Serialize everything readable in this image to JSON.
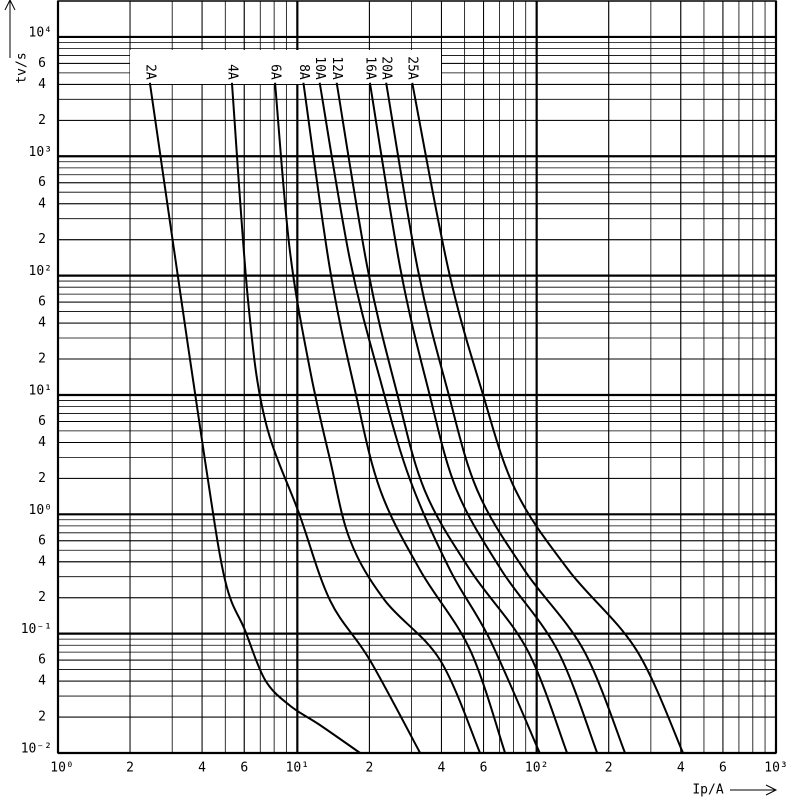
{
  "chart_data": {
    "type": "line",
    "log_x": true,
    "log_y": true,
    "grid": true,
    "minor_grid": true,
    "color": "#000000",
    "xlabel": "Ip/A",
    "ylabel": "tv/s",
    "xlim": [
      1,
      1000
    ],
    "ylim": [
      0.01,
      20000
    ],
    "xticks": [
      {
        "value": 1,
        "label": "10⁰"
      },
      2,
      4,
      6,
      {
        "value": 10,
        "label": "10¹"
      },
      {
        "value": 20,
        "label": "2"
      },
      {
        "value": 40,
        "label": "4"
      },
      {
        "value": 60,
        "label": "6"
      },
      {
        "value": 100,
        "label": "10²"
      },
      {
        "value": 200,
        "label": "2"
      },
      {
        "value": 400,
        "label": "4"
      },
      {
        "value": 600,
        "label": "6"
      },
      {
        "value": 1000,
        "label": "10³"
      }
    ],
    "yticks": [
      {
        "value": 0.01,
        "label": "10⁻²"
      },
      {
        "value": 0.02,
        "label": "2"
      },
      {
        "value": 0.04,
        "label": "4"
      },
      {
        "value": 0.06,
        "label": "6"
      },
      {
        "value": 0.1,
        "label": "10⁻¹"
      },
      {
        "value": 0.2,
        "label": "2"
      },
      {
        "value": 0.4,
        "label": "4"
      },
      {
        "value": 0.6,
        "label": "6"
      },
      {
        "value": 1,
        "label": "10⁰"
      },
      2,
      4,
      6,
      {
        "value": 10,
        "label": "10¹"
      },
      {
        "value": 20,
        "label": "2"
      },
      {
        "value": 40,
        "label": "4"
      },
      {
        "value": 60,
        "label": "6"
      },
      {
        "value": 100,
        "label": "10²"
      },
      {
        "value": 200,
        "label": "2"
      },
      {
        "value": 400,
        "label": "4"
      },
      {
        "value": 600,
        "label": "6"
      },
      {
        "value": 1000,
        "label": "10³"
      },
      {
        "value": 2000,
        "label": "2"
      },
      {
        "value": 4000,
        "label": "4"
      },
      {
        "value": 6000,
        "label": "6"
      },
      {
        "value": 10000,
        "label": "10⁴"
      }
    ],
    "series": [
      {
        "name": "2A",
        "x": [
          2.42,
          2.99,
          4.11,
          4.99,
          6.04,
          7.33,
          9.3,
          12.4,
          18.3
        ],
        "values": [
          4130,
          220,
          2.86,
          0.28,
          0.107,
          0.041,
          0.025,
          0.0172,
          0.01
        ]
      },
      {
        "name": "4A",
        "x": [
          5.33,
          6.22,
          7.33,
          10.2,
          13.7,
          20.1,
          32.6
        ],
        "values": [
          4130,
          62.7,
          6.2,
          1,
          0.19,
          0.06,
          0.01
        ]
      },
      {
        "name": "6A",
        "x": [
          8.07,
          9.3,
          11.3,
          13.7,
          16.6,
          23.2,
          39.5,
          58
        ],
        "values": [
          4130,
          164,
          16.2,
          2.86,
          0.61,
          0.19,
          0.06,
          0.01
        ]
      },
      {
        "name": "8A",
        "x": [
          10.6,
          13.7,
          17.4,
          22.2,
          32.6,
          52.7,
          73.8
        ],
        "values": [
          4130,
          112,
          11,
          1.6,
          0.34,
          0.073,
          0.01
        ]
      },
      {
        "name": "10A",
        "x": [
          12.4,
          16.6,
          22.2,
          29.6,
          43.5,
          63.8,
          103
        ],
        "values": [
          4130,
          135,
          13.4,
          1.94,
          0.34,
          0.089,
          0.01
        ]
      },
      {
        "name": "12A",
        "x": [
          14.6,
          19.7,
          25.9,
          34.0,
          52.8,
          91.4,
          134
        ],
        "values": [
          4130,
          112,
          11,
          1.6,
          0.34,
          0.073,
          0.01
        ]
      },
      {
        "name": "16A",
        "x": [
          20.1,
          27.0,
          35.3,
          46.3,
          71.3,
          122,
          179
        ],
        "values": [
          4130,
          112,
          11,
          1.6,
          0.34,
          0.073,
          0.01
        ]
      },
      {
        "name": "20A",
        "x": [
          23.5,
          31.9,
          42.4,
          56.4,
          88.9,
          157,
          234
        ],
        "values": [
          4130,
          112,
          11,
          1.6,
          0.34,
          0.073,
          0.01
        ]
      },
      {
        "name": "25A",
        "x": [
          30.2,
          42.8,
          58.9,
          81.5,
          136,
          261,
          409
        ],
        "values": [
          4130,
          112,
          11,
          1.6,
          0.34,
          0.073,
          0.01
        ]
      }
    ]
  }
}
